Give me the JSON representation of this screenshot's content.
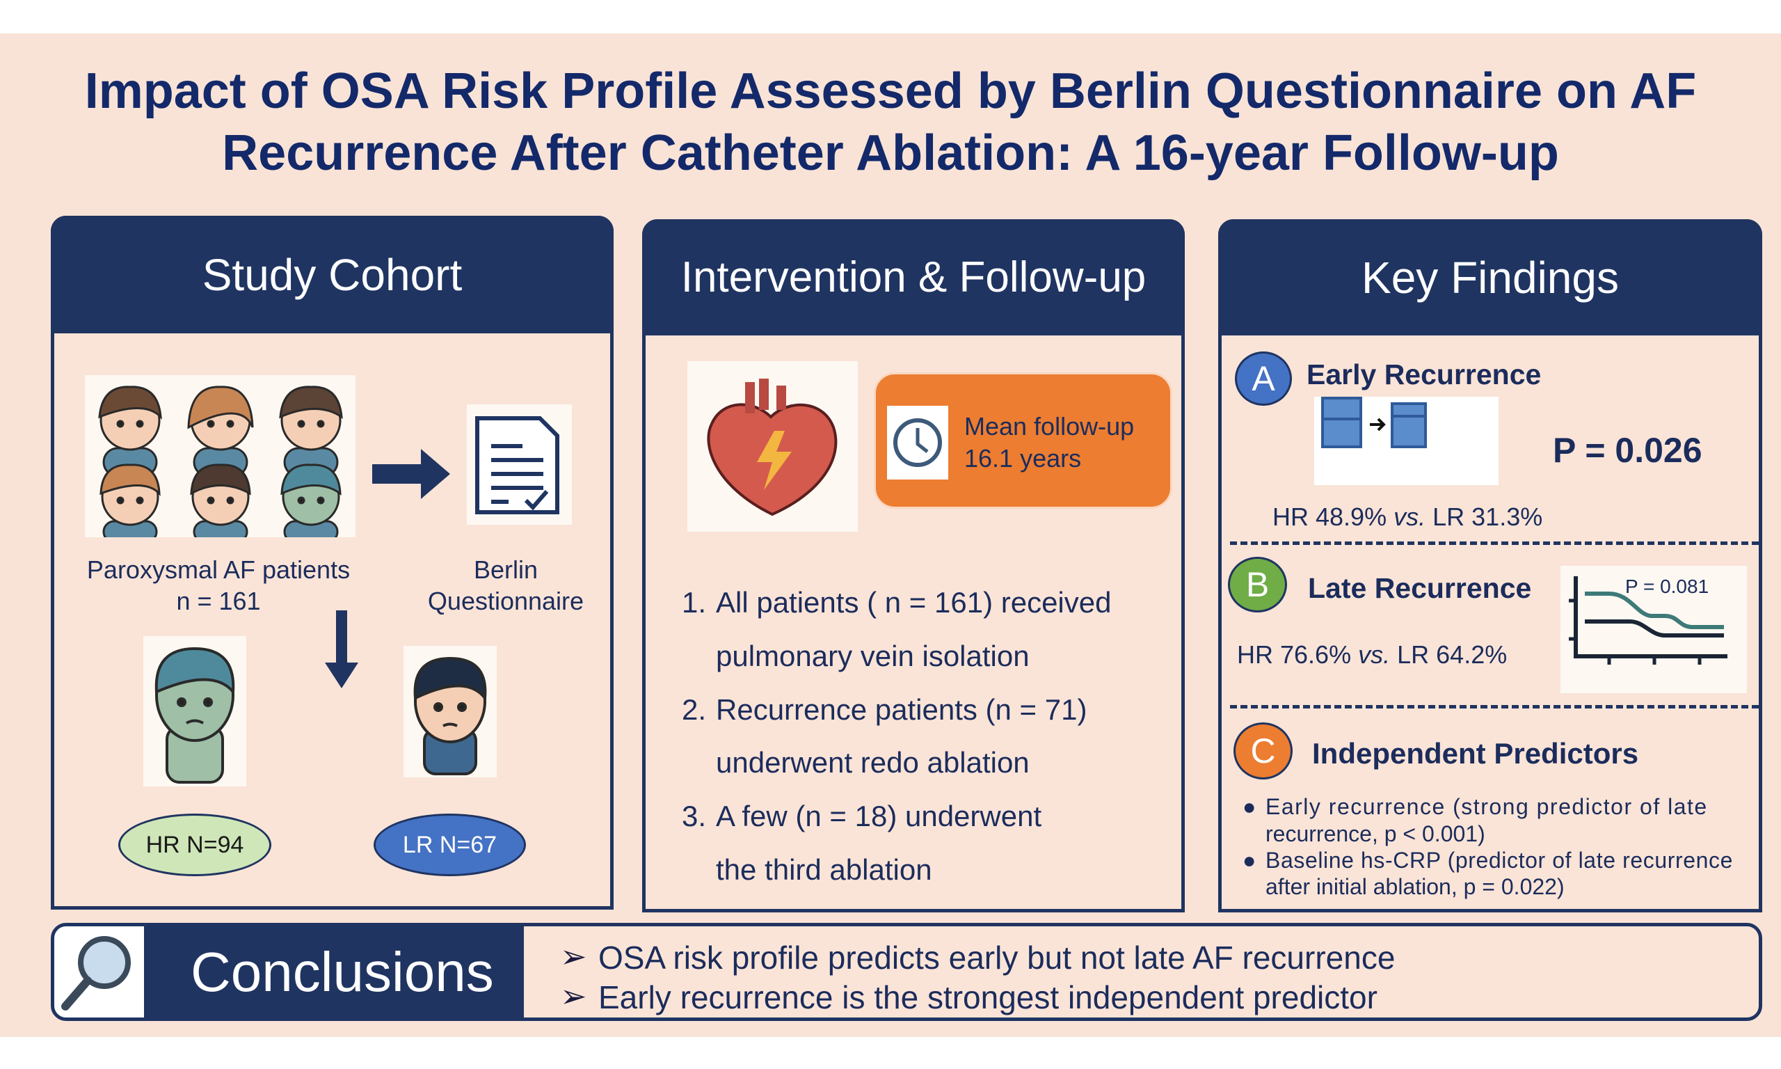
{
  "title": {
    "line1": "Impact of OSA Risk Profile Assessed by Berlin Questionnaire on AF",
    "line2": "Recurrence After Catheter Ablation: A 16-year Follow-up"
  },
  "cohort": {
    "header": "Study Cohort",
    "patients_label": "Paroxysmal AF patients",
    "patients_n": "n = 161",
    "berlin_line1": "Berlin",
    "berlin_line2": "Questionnaire",
    "hr_label": "HR N=94",
    "lr_label": "LR N=67"
  },
  "intervention": {
    "header": "Intervention & Follow-up",
    "followup_line1": "Mean follow-up",
    "followup_line2": "16.1 years",
    "items": [
      {
        "num": "1.",
        "line1": "All patients ( n = 161) received",
        "line2": "pulmonary vein isolation"
      },
      {
        "num": "2.",
        "line1": "Recurrence patients (n = 71)",
        "line2": "underwent redo ablation"
      },
      {
        "num": "3.",
        "line1": "A few (n = 18) underwent",
        "line2": "the third ablation"
      }
    ]
  },
  "findings": {
    "header": "Key Findings",
    "a": {
      "badge": "A",
      "title": "Early Recurrence",
      "p_value": "P = 0.026",
      "comparison_hr": "HR 48.9%",
      "vs": "vs.",
      "comparison_lr": "LR 31.3%"
    },
    "b": {
      "badge": "B",
      "title": "Late Recurrence",
      "chart_p": "P = 0.081",
      "comparison_hr": "HR 76.6%",
      "vs": "vs.",
      "comparison_lr": "LR 64.2%"
    },
    "c": {
      "badge": "C",
      "title": "Independent Predictors",
      "bullets": [
        {
          "line1": "Early recurrence (strong predictor of late",
          "line2": "recurrence, p < 0.001)"
        },
        {
          "line1": "Baseline hs-CRP (predictor of late recurrence",
          "line2": "after initial ablation, p = 0.022)"
        }
      ]
    }
  },
  "conclusions": {
    "label": "Conclusions",
    "items": [
      "OSA risk profile predicts early but not late AF recurrence",
      "Early recurrence is the strongest independent predictor"
    ]
  },
  "colors": {
    "navy": "#1f3461",
    "orange": "#ec7d31",
    "blue": "#4472c4",
    "green": "#70ad47",
    "background": "#f9e3d6"
  }
}
